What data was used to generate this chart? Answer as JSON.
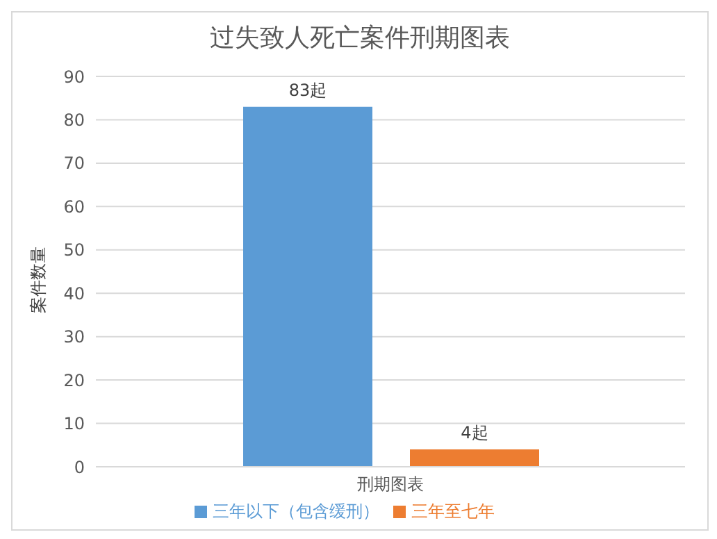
{
  "chart_data": {
    "type": "bar",
    "title": "过失致人死亡案件刑期图表",
    "ylabel": "案件数量",
    "categories": [
      "刑期图表"
    ],
    "series": [
      {
        "name": "三年以下（包含缓刑）",
        "color": "#5b9bd5",
        "values": [
          83
        ],
        "value_labels": [
          "83起"
        ]
      },
      {
        "name": "三年至七年",
        "color": "#ed7d31",
        "values": [
          4
        ],
        "value_labels": [
          "4起"
        ]
      }
    ],
    "ylim": [
      0,
      90
    ],
    "yticks": [
      0,
      10,
      20,
      30,
      40,
      50,
      60,
      70,
      80,
      90
    ],
    "grid": "y",
    "legend": "bottom"
  }
}
